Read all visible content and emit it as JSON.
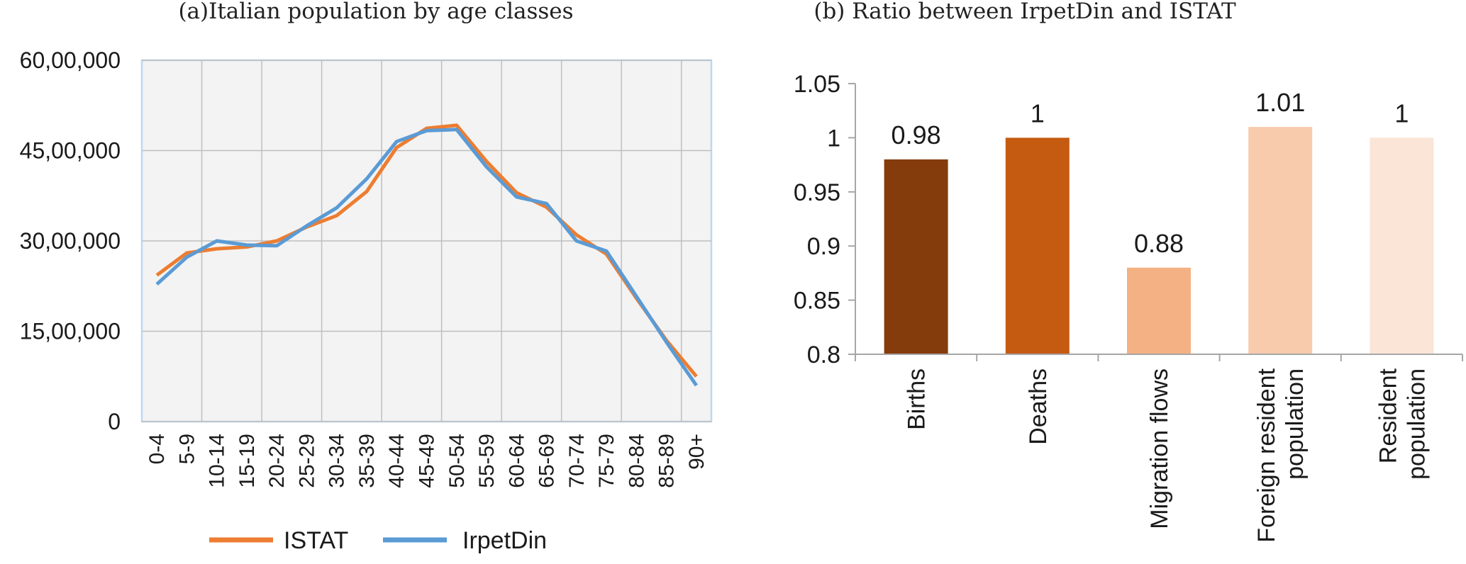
{
  "chart_data": [
    {
      "type": "line",
      "title": "(a)Italian population by age classes",
      "x": [
        "0-4",
        "5-9",
        "10-14",
        "15-19",
        "20-24",
        "25-29",
        "30-34",
        "35-39",
        "40-44",
        "45-49",
        "50-54",
        "55-59",
        "60-64",
        "65-69",
        "70-74",
        "75-79",
        "80-84",
        "85-89",
        "90+"
      ],
      "series": [
        {
          "name": "ISTAT",
          "color": "#ED7D31",
          "values": [
            2430000,
            2800000,
            2870000,
            2900000,
            3000000,
            3230000,
            3420000,
            3820000,
            4550000,
            4870000,
            4920000,
            4320000,
            3800000,
            3560000,
            3100000,
            2780000,
            2050000,
            1350000,
            750000
          ]
        },
        {
          "name": "IrpetDin",
          "color": "#5B9BD5",
          "values": [
            2280000,
            2730000,
            3000000,
            2930000,
            2920000,
            3250000,
            3550000,
            4030000,
            4650000,
            4830000,
            4850000,
            4230000,
            3730000,
            3620000,
            3000000,
            2830000,
            2080000,
            1320000,
            600000
          ]
        }
      ],
      "yticks": [
        "0",
        "15,00,000",
        "30,00,000",
        "45,00,000",
        "60,00,000"
      ],
      "ylim": [
        0,
        6000000
      ],
      "grid": true,
      "legend": "bottom"
    },
    {
      "type": "bar",
      "title": "(b) Ratio between IrpetDin and ISTAT",
      "categories": [
        [
          "Births"
        ],
        [
          "Deaths"
        ],
        [
          "Migration flows"
        ],
        [
          "Foreign resident",
          "population"
        ],
        [
          "Resident",
          "population"
        ]
      ],
      "values": [
        0.98,
        1,
        0.88,
        1.01,
        1
      ],
      "value_labels": [
        "0.98",
        "1",
        "0.88",
        "1.01",
        "1"
      ],
      "colors": [
        "#843C0C",
        "#C55A11",
        "#F4B183",
        "#F8CBAD",
        "#FBE5D6"
      ],
      "yticks": [
        "0.8",
        "0.85",
        "0.9",
        "0.95",
        "1",
        "1.05"
      ],
      "ylim": [
        0.8,
        1.05
      ]
    }
  ]
}
